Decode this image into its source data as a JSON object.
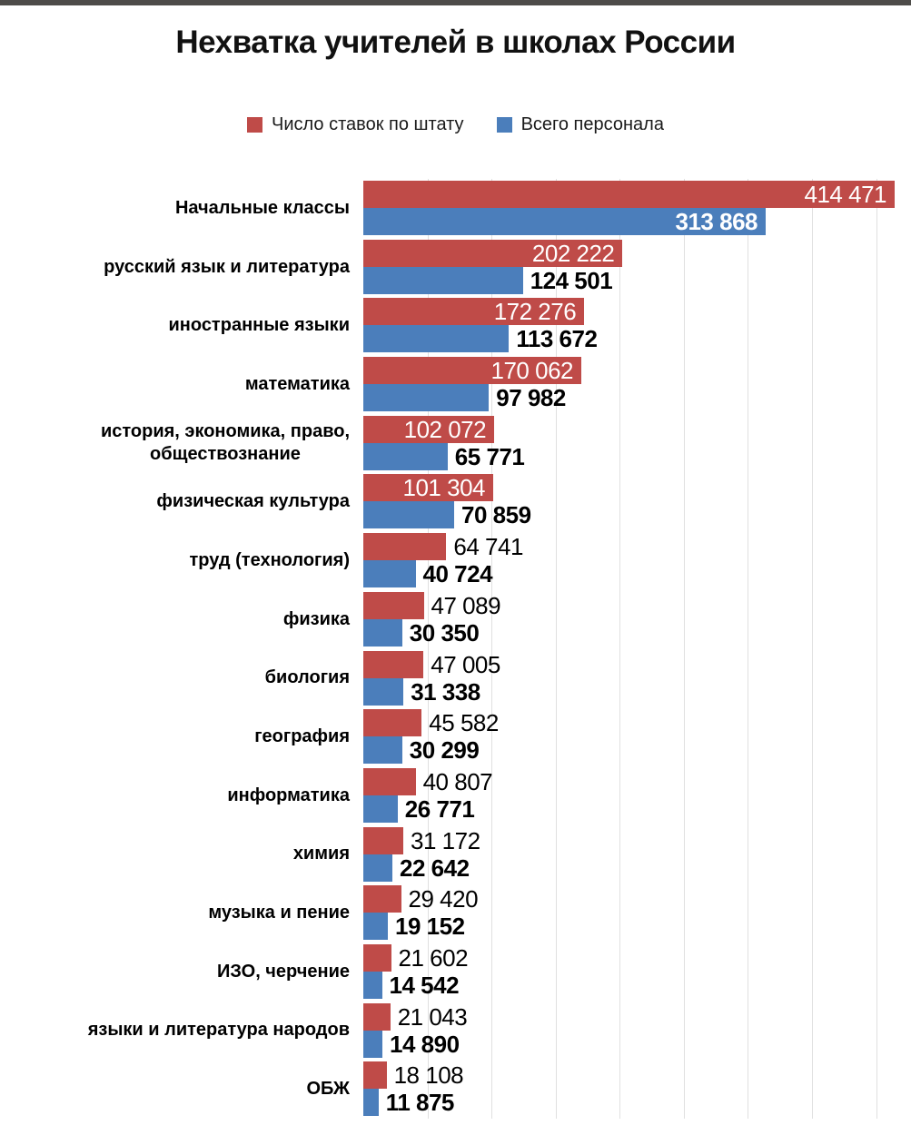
{
  "top_strip": {
    "color": "#4e4c49"
  },
  "chart_data": {
    "type": "bar",
    "orientation": "horizontal",
    "title": "Нехватка учителей в школах России",
    "legend_position": "top",
    "grid": true,
    "xlim": [
      0,
      450000
    ],
    "gridline_step": 50000,
    "value_labels": true,
    "categories": [
      "Начальные классы",
      "русский язык и литература",
      "иностранные языки",
      "математика",
      "история, экономика, право,\nобществознание",
      "физическая культура",
      "труд (технология)",
      "физика",
      "биология",
      "география",
      "информатика",
      "химия",
      "музыка и пение",
      "ИЗО, черчение",
      "языки и литература народов",
      "ОБЖ"
    ],
    "series": [
      {
        "name": "Число ставок по штату",
        "color": "#bf4b48",
        "values": [
          414471,
          202222,
          172276,
          170062,
          102072,
          101304,
          64741,
          47089,
          47005,
          45582,
          40807,
          31172,
          29420,
          21602,
          21043,
          18108
        ]
      },
      {
        "name": "Всего персонала",
        "color": "#4b7ebb",
        "values": [
          313868,
          124501,
          113672,
          97982,
          65771,
          70859,
          40724,
          30350,
          31338,
          30299,
          26771,
          22642,
          19152,
          14542,
          14890,
          11875
        ]
      }
    ]
  }
}
